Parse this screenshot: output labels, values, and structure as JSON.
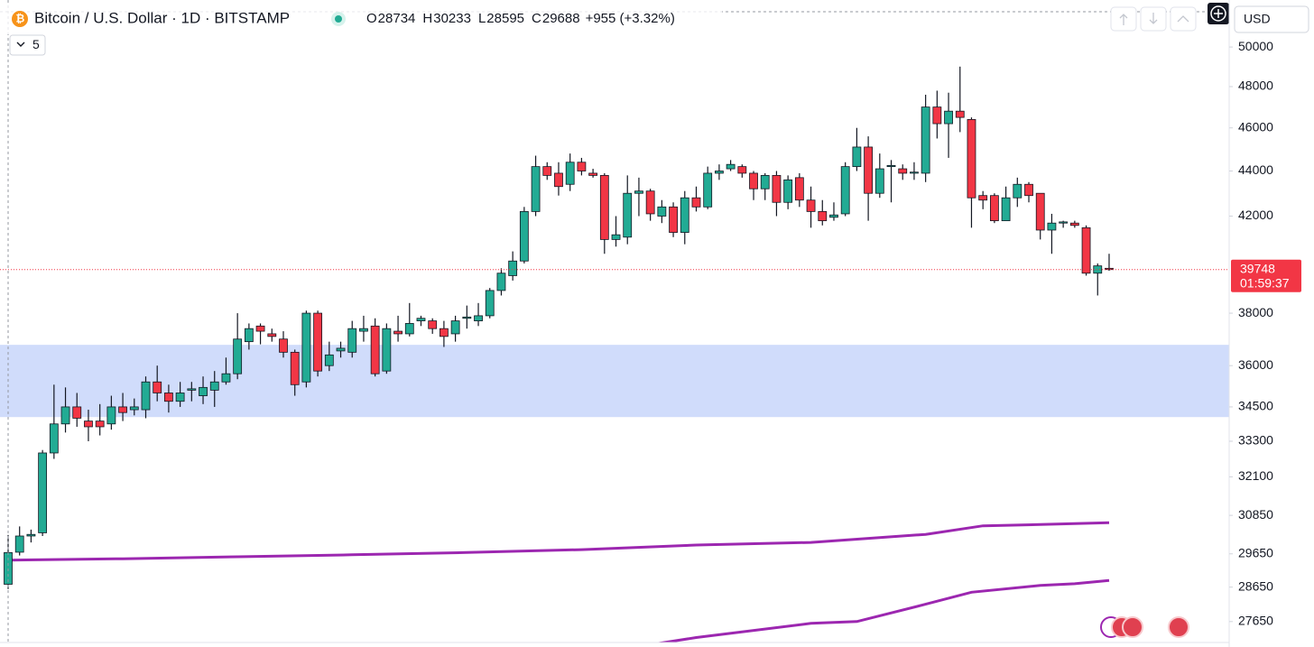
{
  "chart_data": {
    "type": "candlestick",
    "title": "Bitcoin / U.S. Dollar · 1D · BITSTAMP",
    "header_values": [
      {
        "key": "O",
        "value": "28734"
      },
      {
        "key": "H",
        "value": "30233"
      },
      {
        "key": "L",
        "value": "28595"
      },
      {
        "key": "C",
        "value": "29688"
      }
    ],
    "header_change": "+955 (+3.32%)",
    "indicator_count": "5",
    "currency": "USD",
    "log_scale": true,
    "ylim": [
      27060,
      52240
    ],
    "yticks": [
      50000,
      48000,
      46000,
      44000,
      42000,
      38000,
      36000,
      34500,
      33300,
      32100,
      30850,
      29650,
      28650,
      27650
    ],
    "up_color": "#22ab94",
    "down_color": "#f23645",
    "candles": [
      [
        28734,
        30233,
        28595,
        29688
      ],
      [
        29700,
        30500,
        29600,
        30200
      ],
      [
        30200,
        30400,
        30000,
        30250
      ],
      [
        30300,
        33000,
        30200,
        32900
      ],
      [
        32900,
        35300,
        32700,
        33900
      ],
      [
        33900,
        35200,
        33600,
        34500
      ],
      [
        34500,
        35000,
        33800,
        34100
      ],
      [
        34000,
        34400,
        33300,
        33800
      ],
      [
        34000,
        34600,
        33500,
        33800
      ],
      [
        33900,
        34900,
        33700,
        34500
      ],
      [
        34500,
        35000,
        34000,
        34300
      ],
      [
        34400,
        34800,
        34200,
        34500
      ],
      [
        34400,
        35600,
        34100,
        35400
      ],
      [
        35400,
        36000,
        34700,
        35000
      ],
      [
        35000,
        35300,
        34300,
        34700
      ],
      [
        34700,
        35400,
        34500,
        35000
      ],
      [
        35100,
        35400,
        34700,
        35150
      ],
      [
        34900,
        35600,
        34600,
        35200
      ],
      [
        35100,
        35800,
        34500,
        35400
      ],
      [
        35400,
        36300,
        35300,
        35700
      ],
      [
        35700,
        38000,
        35500,
        37000
      ],
      [
        36900,
        37600,
        36600,
        37400
      ],
      [
        37500,
        37600,
        36800,
        37300
      ],
      [
        37200,
        37400,
        36900,
        37100
      ],
      [
        37000,
        37300,
        36300,
        36500
      ],
      [
        36500,
        36600,
        34900,
        35300
      ],
      [
        35400,
        38100,
        35200,
        38000
      ],
      [
        38000,
        38100,
        35600,
        35800
      ],
      [
        36000,
        36900,
        35800,
        36400
      ],
      [
        36550,
        36900,
        36300,
        36650
      ],
      [
        36500,
        37700,
        36300,
        37400
      ],
      [
        37300,
        37900,
        36900,
        37400
      ],
      [
        37500,
        37800,
        35600,
        35700
      ],
      [
        35800,
        37600,
        35700,
        37400
      ],
      [
        37300,
        37900,
        36900,
        37200
      ],
      [
        37200,
        38400,
        37100,
        37600
      ],
      [
        37700,
        37900,
        37500,
        37800
      ],
      [
        37700,
        37800,
        37200,
        37400
      ],
      [
        37400,
        37700,
        36700,
        37100
      ],
      [
        37200,
        37900,
        36900,
        37700
      ],
      [
        37800,
        38300,
        37400,
        37850
      ],
      [
        37700,
        38400,
        37500,
        37900
      ],
      [
        37900,
        39000,
        37800,
        38900
      ],
      [
        38900,
        39800,
        38700,
        39600
      ],
      [
        39500,
        40500,
        39300,
        40100
      ],
      [
        40100,
        42400,
        40000,
        42200
      ],
      [
        42200,
        44700,
        42000,
        44200
      ],
      [
        44200,
        44400,
        43600,
        43800
      ],
      [
        43900,
        44400,
        42900,
        43300
      ],
      [
        43400,
        44800,
        43100,
        44400
      ],
      [
        44400,
        44600,
        43800,
        44000
      ],
      [
        43900,
        44100,
        43700,
        43800
      ],
      [
        43800,
        43900,
        40400,
        41000
      ],
      [
        41000,
        42000,
        40700,
        41200
      ],
      [
        41100,
        43800,
        40800,
        43000
      ],
      [
        43000,
        43700,
        42000,
        43100
      ],
      [
        43100,
        43200,
        41800,
        42100
      ],
      [
        42000,
        42700,
        41700,
        42400
      ],
      [
        42400,
        42600,
        41100,
        41300
      ],
      [
        41300,
        43100,
        40800,
        42800
      ],
      [
        42800,
        43300,
        42200,
        42400
      ],
      [
        42400,
        44200,
        42300,
        43900
      ],
      [
        43900,
        44300,
        43600,
        44000
      ],
      [
        44100,
        44500,
        44000,
        44300
      ],
      [
        44200,
        44300,
        43700,
        43900
      ],
      [
        43900,
        44000,
        42700,
        43200
      ],
      [
        43200,
        43900,
        42700,
        43800
      ],
      [
        43800,
        44000,
        42000,
        42600
      ],
      [
        42600,
        43800,
        42300,
        43600
      ],
      [
        43700,
        43900,
        42400,
        42700
      ],
      [
        42700,
        43300,
        41500,
        42200
      ],
      [
        42200,
        42700,
        41600,
        41800
      ],
      [
        41950,
        42600,
        41800,
        42050
      ],
      [
        42100,
        44400,
        42000,
        44200
      ],
      [
        44200,
        46000,
        44000,
        45100
      ],
      [
        45100,
        45600,
        41800,
        43000
      ],
      [
        43000,
        44800,
        42800,
        44100
      ],
      [
        44200,
        44500,
        42600,
        44250
      ],
      [
        44100,
        44300,
        43600,
        43900
      ],
      [
        43900,
        44400,
        43600,
        43950
      ],
      [
        43900,
        47600,
        43500,
        47000
      ],
      [
        47000,
        47800,
        45500,
        46200
      ],
      [
        46200,
        47700,
        44600,
        46800
      ],
      [
        46800,
        49000,
        45800,
        46500
      ],
      [
        46400,
        46500,
        41500,
        42800
      ],
      [
        42900,
        43100,
        42300,
        42700
      ],
      [
        42900,
        43000,
        41700,
        41800
      ],
      [
        41800,
        43300,
        41800,
        42800
      ],
      [
        42800,
        43700,
        42400,
        43400
      ],
      [
        43400,
        43500,
        42600,
        42900
      ],
      [
        43000,
        43000,
        41000,
        41400
      ],
      [
        41400,
        42100,
        40400,
        41700
      ],
      [
        41700,
        41800,
        41500,
        41750
      ],
      [
        41700,
        41800,
        41500,
        41600
      ],
      [
        41500,
        41600,
        39500,
        39600
      ],
      [
        39600,
        40000,
        38700,
        39900
      ],
      [
        39800,
        40400,
        39700,
        39748
      ]
    ],
    "series": [
      {
        "color": "#9c27b0",
        "x": [
          0,
          10,
          20,
          30,
          40,
          50,
          60,
          70,
          80,
          85,
          90,
          96
        ],
        "values": [
          29460,
          29500,
          29560,
          29620,
          29690,
          29780,
          29920,
          30000,
          30250,
          30520,
          30560,
          30620
        ]
      },
      {
        "color": "#9c27b0",
        "x": [
          55,
          60,
          70,
          74,
          80,
          84,
          90,
          93,
          96
        ],
        "values": [
          26950,
          27200,
          27600,
          27650,
          28150,
          28500,
          28700,
          28750,
          28850
        ]
      }
    ],
    "highlight_range": [
      34140,
      36780
    ],
    "highlight_color": "#d0dcfb",
    "last_price": 39748,
    "last_price_label": "39748",
    "countdown": "01:59:37"
  }
}
